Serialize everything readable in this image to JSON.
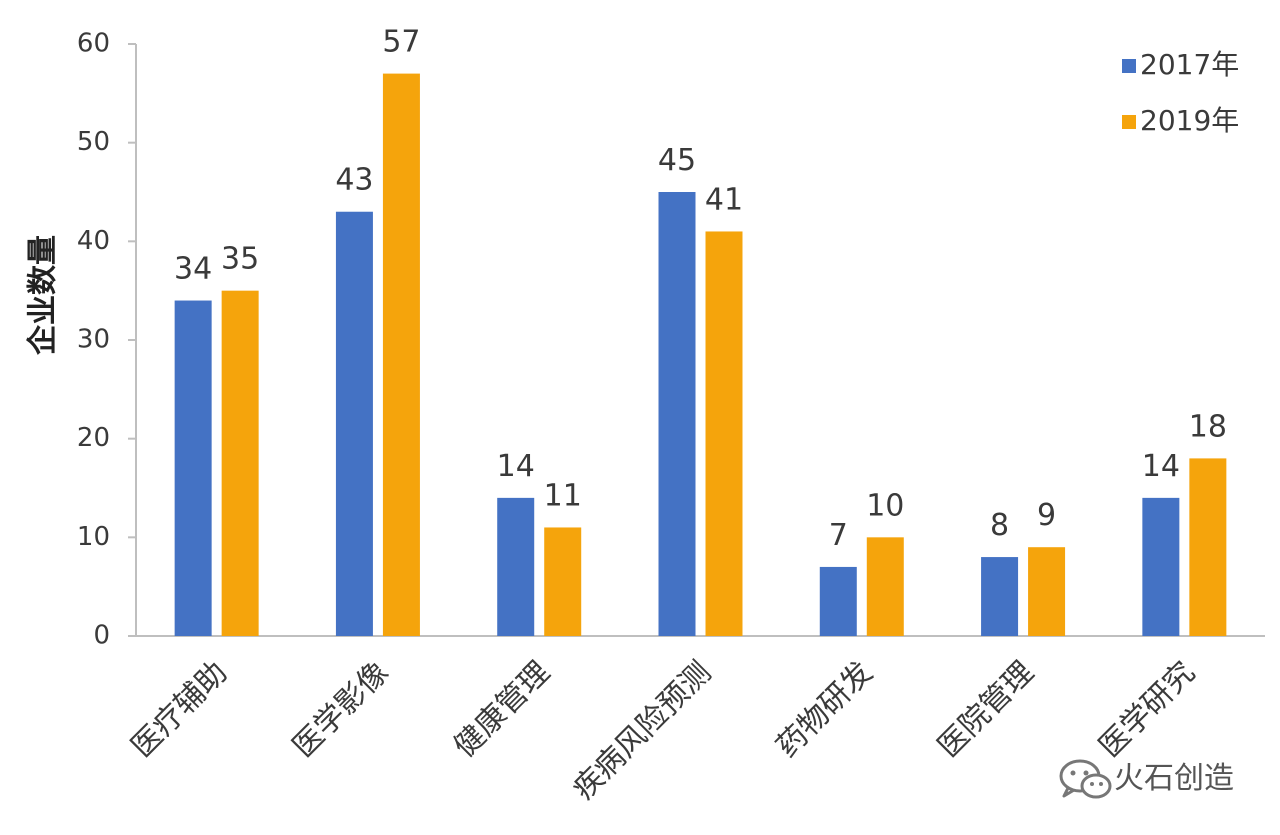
{
  "chart_data": {
    "type": "bar",
    "categories": [
      "医疗辅助",
      "医学影像",
      "健康管理",
      "疾病风险预测",
      "药物研发",
      "医院管理",
      "医学研究"
    ],
    "series": [
      {
        "name": "2017年",
        "values": [
          34,
          43,
          14,
          45,
          7,
          8,
          14
        ],
        "color": "#4472C4"
      },
      {
        "name": "2019年",
        "values": [
          35,
          57,
          11,
          41,
          10,
          9,
          18
        ],
        "color": "#F5A40C"
      }
    ],
    "ylabel": "企业数量",
    "xlabel": "",
    "title": "",
    "ylim": [
      0,
      60
    ],
    "yticks": [
      0,
      10,
      20,
      30,
      40,
      50,
      60
    ],
    "grid": false,
    "legend_position": "top-right",
    "data_labels": true
  },
  "watermark": {
    "text": "火石创造",
    "icon": "wechat-icon"
  }
}
